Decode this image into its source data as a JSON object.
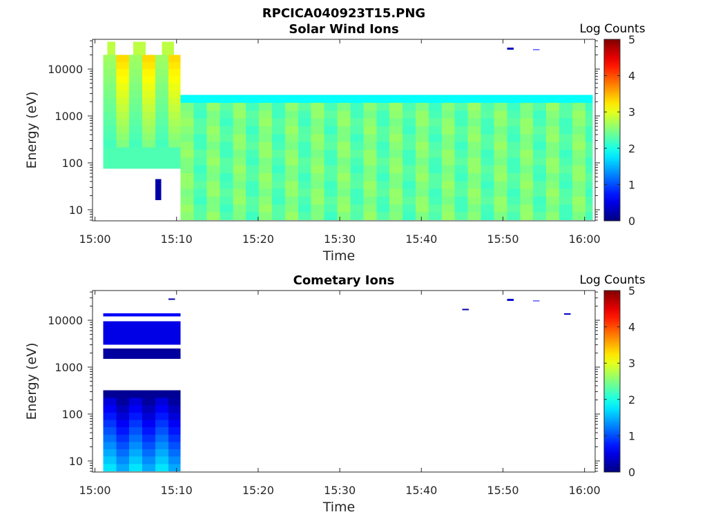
{
  "figure_title": "RPCICA040923T15.PNG",
  "chart_data": [
    {
      "type": "heatmap",
      "title": "Solar Wind Ions",
      "xlabel": "Time",
      "ylabel": "Energy (eV)",
      "y_scale": "log",
      "x_ticks": [
        "15:00",
        "15:10",
        "15:20",
        "15:30",
        "15:40",
        "15:50",
        "16:00"
      ],
      "y_ticks": [
        "10",
        "100",
        "1000",
        "10000"
      ],
      "colorbar": {
        "label": "Log Counts",
        "ticks": [
          "0",
          "1",
          "2",
          "3",
          "4",
          "5"
        ],
        "range": [
          0,
          5
        ]
      },
      "patches": [
        {
          "t0": 1.0,
          "t1": 10.5,
          "e0": 75,
          "e1": 20000,
          "pattern": "bright_sweep"
        },
        {
          "t0": 1.5,
          "t1": 2.5,
          "e0": 20000,
          "e1": 38000,
          "value": 2.8
        },
        {
          "t0": 4.7,
          "t1": 6.2,
          "e0": 20000,
          "e1": 38000,
          "value": 2.8
        },
        {
          "t0": 8.2,
          "t1": 9.7,
          "e0": 20000,
          "e1": 38000,
          "value": 2.8
        },
        {
          "t0": 7.4,
          "t1": 8.1,
          "e0": 16,
          "e1": 45,
          "value": 0.2
        },
        {
          "t0": 10.5,
          "t1": 61.0,
          "e0": 6,
          "e1": 2800,
          "pattern": "stripes"
        },
        {
          "t0": 50.5,
          "t1": 51.3,
          "e0": 26000,
          "e1": 28500,
          "value": 0.3
        },
        {
          "t0": 53.7,
          "t1": 54.5,
          "e0": 25500,
          "e1": 26500,
          "value": 0.6
        }
      ]
    },
    {
      "type": "heatmap",
      "title": "Cometary Ions",
      "xlabel": "Time",
      "ylabel": "Energy (eV)",
      "y_scale": "log",
      "x_ticks": [
        "15:00",
        "15:10",
        "15:20",
        "15:30",
        "15:40",
        "15:50",
        "16:00"
      ],
      "y_ticks": [
        "10",
        "100",
        "1000",
        "10000"
      ],
      "colorbar": {
        "label": "Log Counts",
        "ticks": [
          "0",
          "1",
          "2",
          "3",
          "4",
          "5"
        ],
        "range": [
          0,
          5
        ]
      },
      "patches": [
        {
          "t0": 1.0,
          "t1": 10.5,
          "e0": 6,
          "e1": 220,
          "pattern": "low_band"
        },
        {
          "t0": 1.0,
          "t1": 10.5,
          "e0": 220,
          "e1": 320,
          "value": 0.1
        },
        {
          "t0": 1.0,
          "t1": 10.5,
          "e0": 1500,
          "e1": 2500,
          "value": 0.15
        },
        {
          "t0": 1.0,
          "t1": 10.5,
          "e0": 3000,
          "e1": 9500,
          "value": 0.5
        },
        {
          "t0": 1.0,
          "t1": 10.5,
          "e0": 12000,
          "e1": 14000,
          "value": 0.6
        },
        {
          "t0": 9.0,
          "t1": 9.8,
          "e0": 27000,
          "e1": 29000,
          "value": 0.2
        },
        {
          "t0": 45.0,
          "t1": 45.8,
          "e0": 16500,
          "e1": 17500,
          "value": 0.2
        },
        {
          "t0": 50.5,
          "t1": 51.3,
          "e0": 26000,
          "e1": 28500,
          "value": 0.4
        },
        {
          "t0": 53.7,
          "t1": 54.5,
          "e0": 25500,
          "e1": 26500,
          "value": 0.6
        },
        {
          "t0": 57.5,
          "t1": 58.3,
          "e0": 13200,
          "e1": 14000,
          "value": 0.4
        }
      ]
    }
  ]
}
